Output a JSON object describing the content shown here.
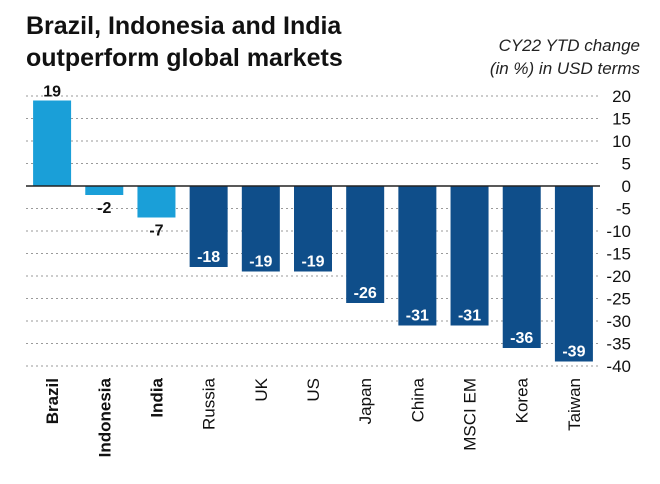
{
  "title": "Brazil, Indonesia and India outperform global markets",
  "subtitle_line1": "CY22 YTD change",
  "subtitle_line2": "(in %) in USD terms",
  "colors": {
    "highlight": "#1a9fd8",
    "other": "#0f4e8a",
    "grid": "#9a9a9a",
    "axis": "#222222"
  },
  "chart_data": {
    "type": "bar",
    "title": "Brazil, Indonesia and India outperform global markets",
    "ylabel": "CY22 YTD change (in %) in USD terms",
    "categories": [
      "Brazil",
      "Indonesia",
      "India",
      "Russia",
      "UK",
      "US",
      "Japan",
      "China",
      "MSCI EM",
      "Korea",
      "Taiwan"
    ],
    "values": [
      19,
      -2,
      -7,
      -18,
      -19,
      -19,
      -26,
      -31,
      -31,
      -36,
      -39
    ],
    "highlighted": [
      "Brazil",
      "Indonesia",
      "India"
    ],
    "ylim": [
      -40,
      20
    ],
    "yticks": [
      20,
      15,
      10,
      5,
      0,
      -5,
      -10,
      -15,
      -20,
      -25,
      -30,
      -35,
      -40
    ],
    "grid": true,
    "y_axis_position": "right"
  }
}
